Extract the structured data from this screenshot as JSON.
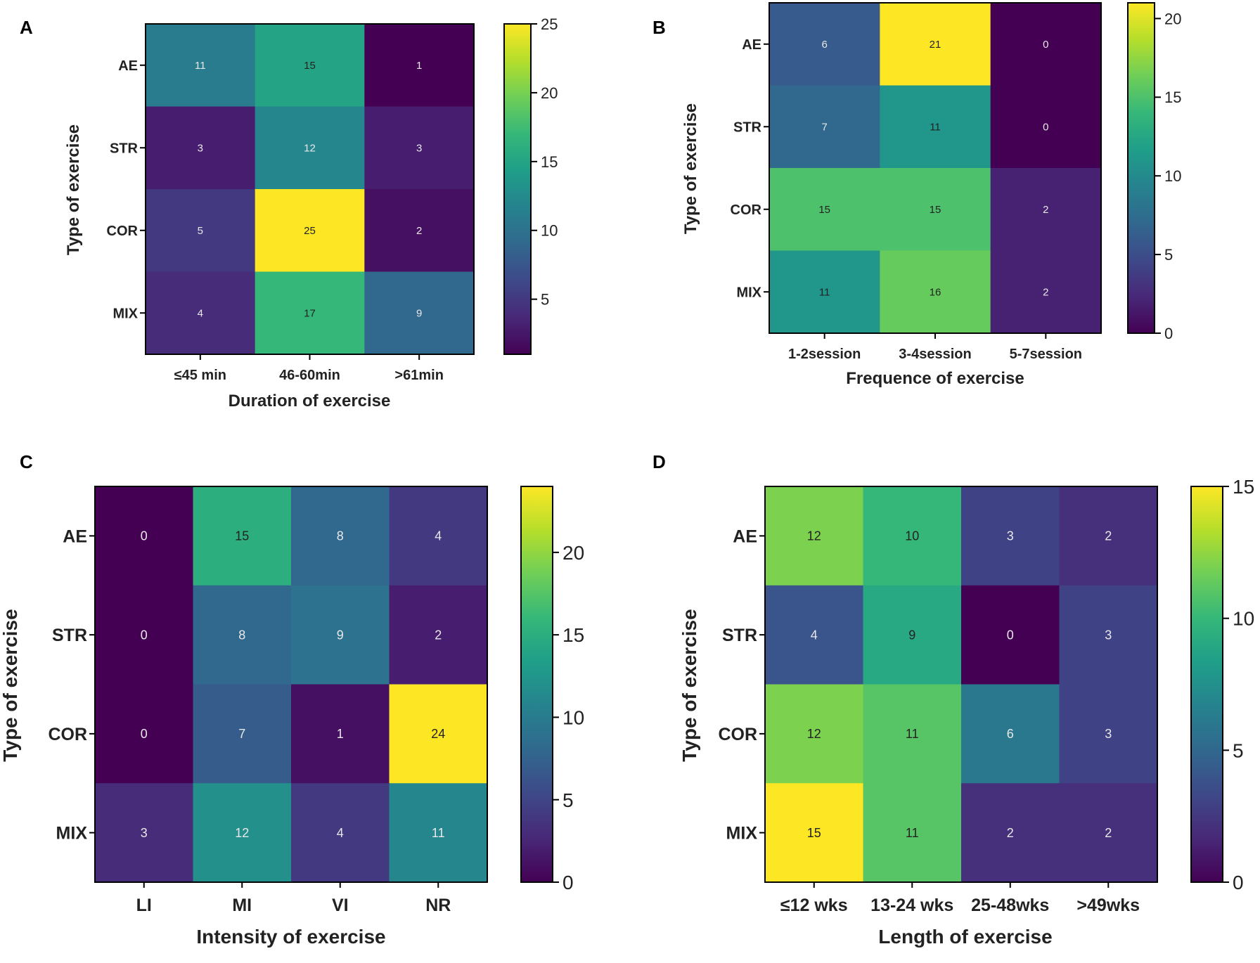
{
  "figure": {
    "colormap": "viridis",
    "colormap_stops": [
      "#440154",
      "#482878",
      "#3e4989",
      "#31688e",
      "#26828e",
      "#1f9e89",
      "#35b779",
      "#6ece58",
      "#b5de2b",
      "#fde725"
    ]
  },
  "chart_data": [
    {
      "type": "heatmap",
      "panel": "A",
      "xlabel": "Duration of exercise",
      "ylabel": "Type of exercise",
      "x_categories": [
        "≤45 min",
        "46-60min",
        ">61min"
      ],
      "y_categories": [
        "AE",
        "STR",
        "COR",
        "MIX"
      ],
      "values": [
        [
          11,
          15,
          1
        ],
        [
          3,
          12,
          3
        ],
        [
          5,
          25,
          2
        ],
        [
          4,
          17,
          9
        ]
      ],
      "color_range": [
        1,
        25
      ],
      "colorbar_ticks": [
        5,
        10,
        15,
        20,
        25
      ]
    },
    {
      "type": "heatmap",
      "panel": "B",
      "xlabel": "Frequence of exercise",
      "ylabel": "Type of exercise",
      "x_categories": [
        "1-2session",
        "3-4session",
        "5-7session"
      ],
      "y_categories": [
        "AE",
        "STR",
        "COR",
        "MIX"
      ],
      "values": [
        [
          6,
          21,
          0
        ],
        [
          7,
          11,
          0
        ],
        [
          15,
          15,
          2
        ],
        [
          11,
          16,
          2
        ]
      ],
      "color_range": [
        0,
        21
      ],
      "colorbar_ticks": [
        0,
        5,
        10,
        15,
        20
      ]
    },
    {
      "type": "heatmap",
      "panel": "C",
      "xlabel": "Intensity of exercise",
      "ylabel": "Type of exercise",
      "x_categories": [
        "LI",
        "MI",
        "VI",
        "NR"
      ],
      "y_categories": [
        "AE",
        "STR",
        "COR",
        "MIX"
      ],
      "values": [
        [
          0,
          15,
          8,
          4
        ],
        [
          0,
          8,
          9,
          2
        ],
        [
          0,
          7,
          1,
          24
        ],
        [
          3,
          12,
          4,
          11
        ]
      ],
      "color_range": [
        0,
        24
      ],
      "colorbar_ticks": [
        0,
        5,
        10,
        15,
        20
      ]
    },
    {
      "type": "heatmap",
      "panel": "D",
      "xlabel": "Length of exercise",
      "ylabel": "Type of exercise",
      "x_categories": [
        "≤12 wks",
        "13-24 wks",
        "25-48wks",
        ">49wks"
      ],
      "y_categories": [
        "AE",
        "STR",
        "COR",
        "MIX"
      ],
      "values": [
        [
          12,
          10,
          3,
          2
        ],
        [
          4,
          9,
          0,
          3
        ],
        [
          12,
          11,
          6,
          3
        ],
        [
          15,
          11,
          2,
          2
        ]
      ],
      "color_range": [
        0,
        15
      ],
      "colorbar_ticks": [
        0,
        5,
        10,
        15
      ]
    }
  ]
}
